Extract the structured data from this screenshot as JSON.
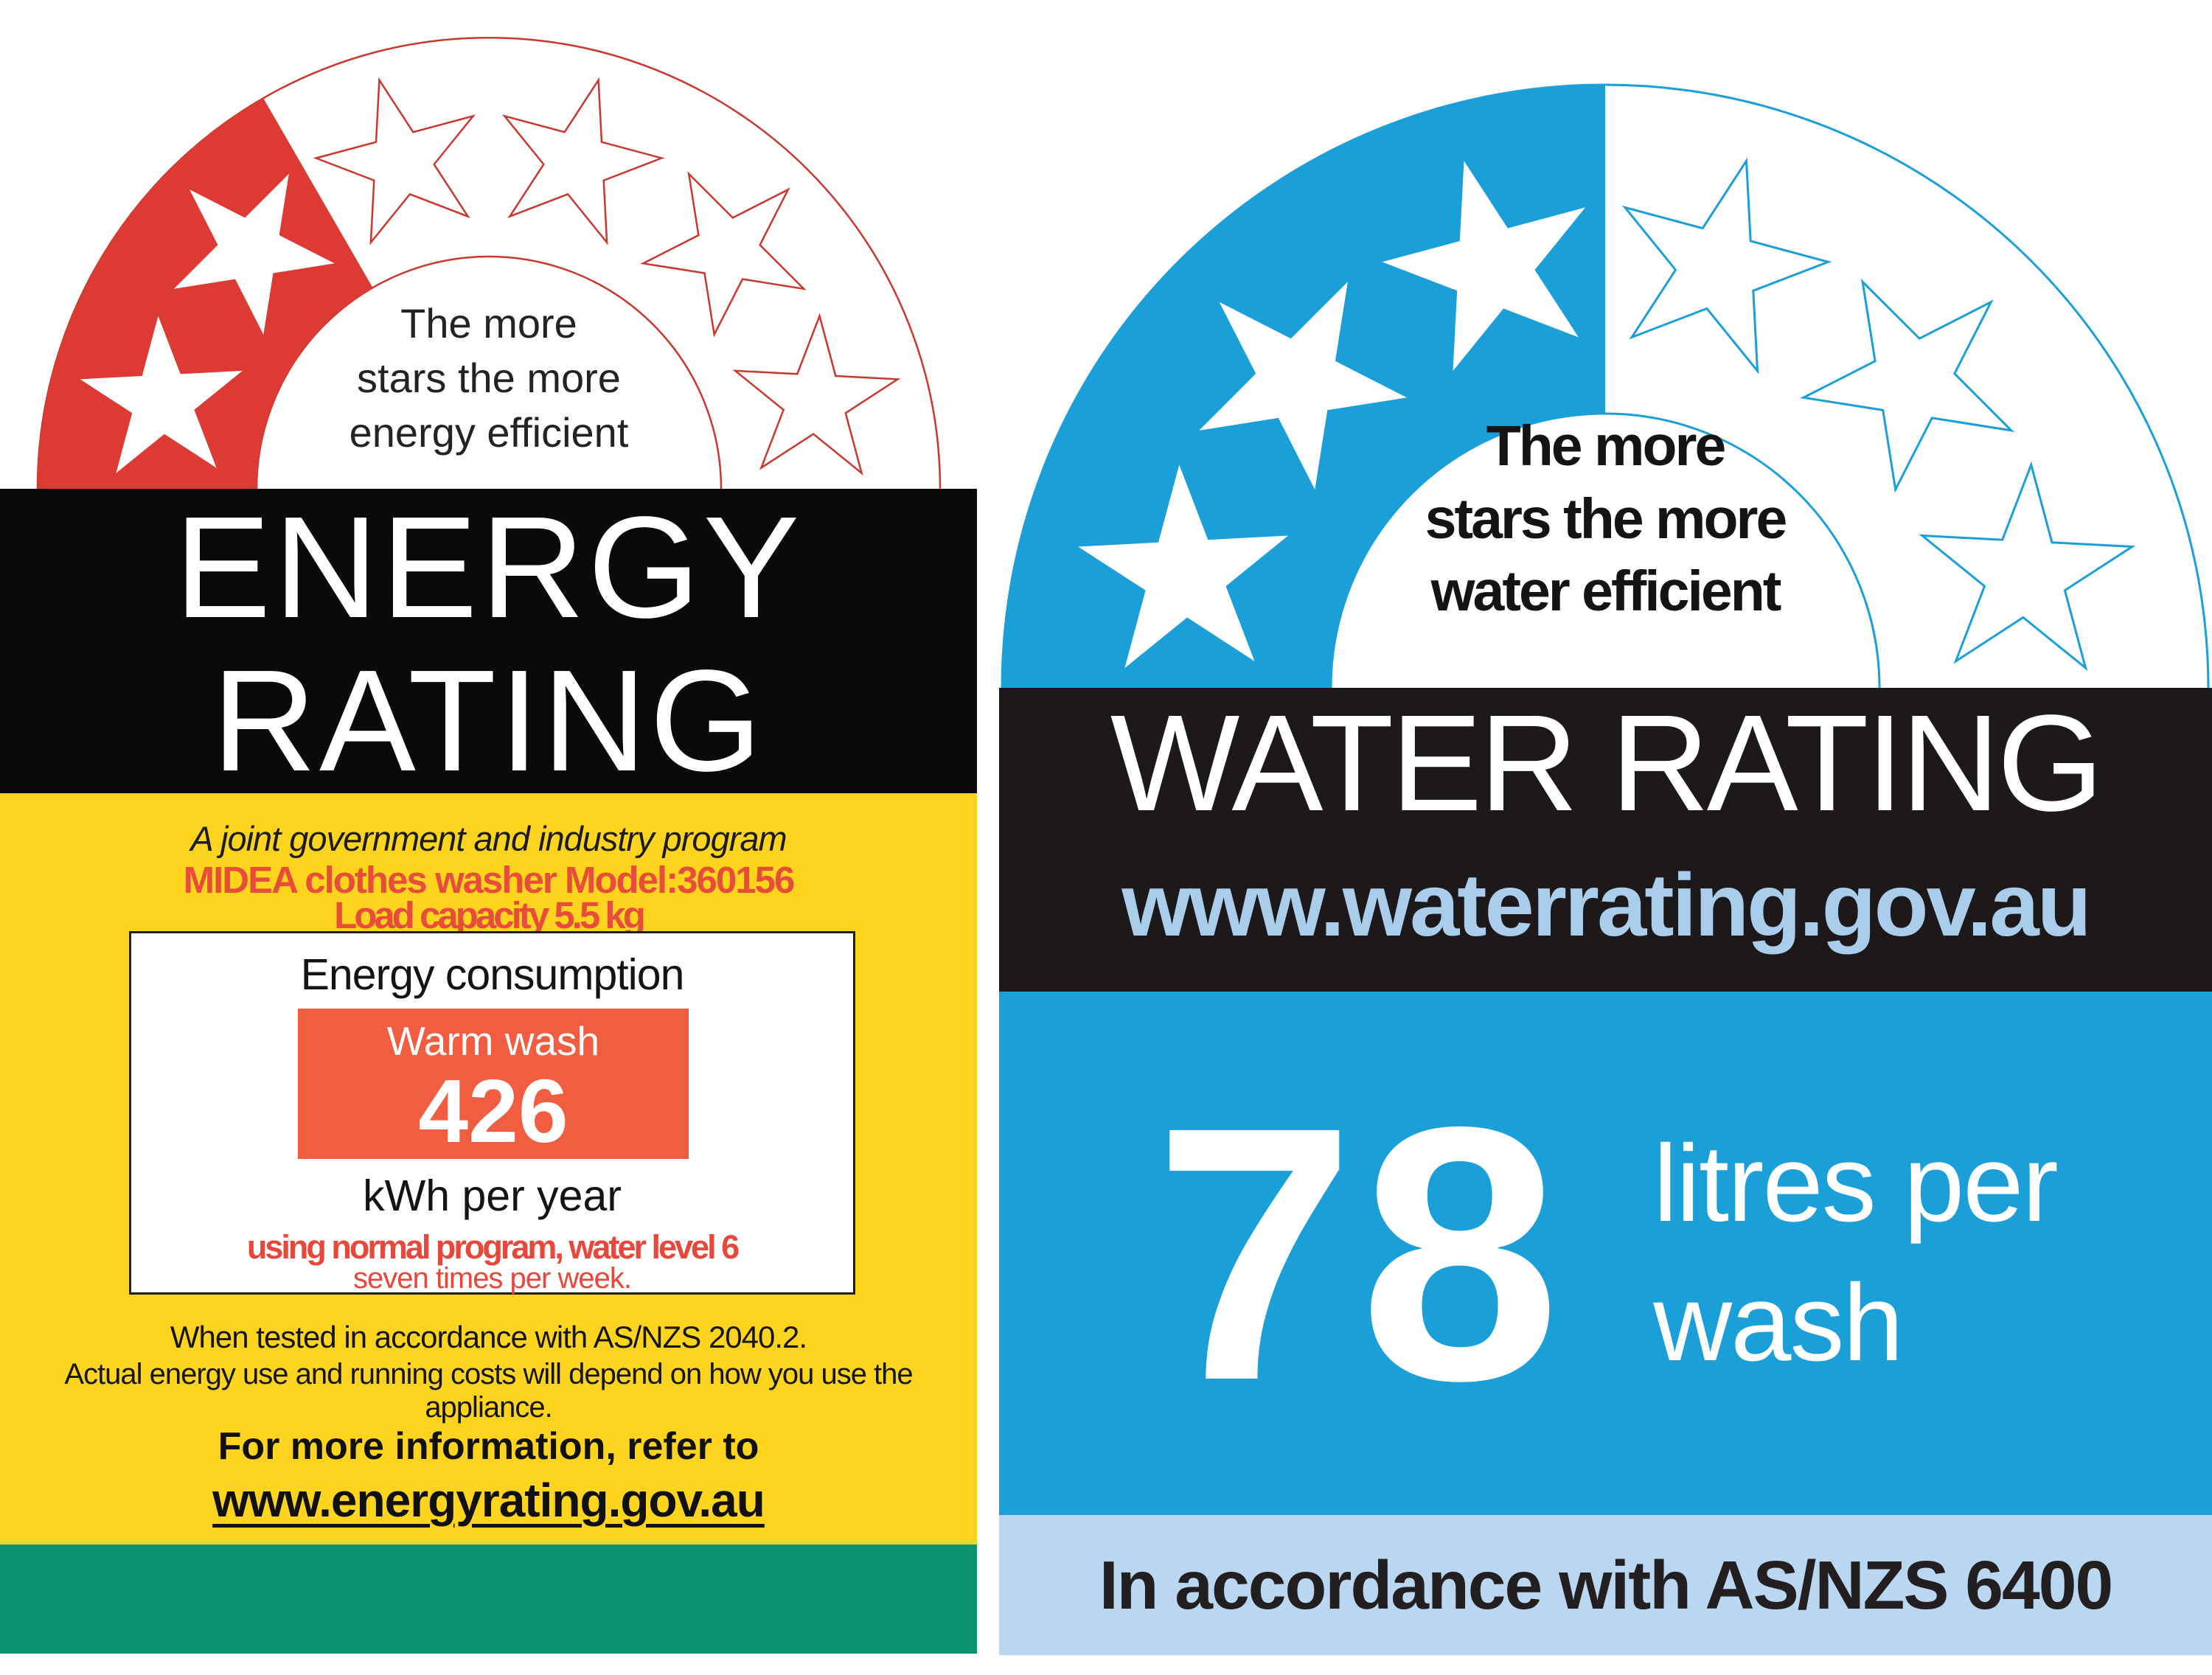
{
  "energy_label": {
    "header": {
      "tagline_lines": [
        "The more",
        "stars the more",
        "energy efficient"
      ],
      "stars_total": 6,
      "stars_filled": 2
    },
    "title_lines": [
      "ENERGY",
      "RATING"
    ],
    "program_note": "A joint government and industry program",
    "model_line": "MIDEA clothes washer Model:360156",
    "capacity_line": "Load capacity 5.5 kg",
    "consumption_box": {
      "heading": "Energy consumption",
      "mode": "Warm wash",
      "value": "426",
      "unit": "kWh per year",
      "condition_line1": "using normal program, water level 6",
      "condition_line2": "seven times per week."
    },
    "disclaimer_lines": [
      "When tested in accordance with AS/NZS 2040.2.",
      "Actual energy use and running costs will depend on how you use the appliance."
    ],
    "more_info": "For more information, refer to",
    "url": "www.energyrating.gov.au",
    "colors": {
      "star_red": "#dd3a33",
      "outline_red": "#c9382f",
      "band_black": "#0a0a0a",
      "body_yellow": "#ffd41f",
      "footer_green": "#0a9271",
      "value_orange": "#f15d40",
      "text_red": "#e84d3c"
    }
  },
  "water_label": {
    "header": {
      "tagline_lines": [
        "The more",
        "stars the more",
        "water efficient"
      ],
      "stars_total": 6,
      "stars_filled": 3
    },
    "title": "WATER RATING",
    "url": "www.waterrating.gov.au",
    "value": "78",
    "unit_lines": [
      "litres per",
      "wash"
    ],
    "footer": "In accordance with AS/NZS 6400",
    "colors": {
      "star_blue": "#1b9fd9",
      "band_black": "#1d191a",
      "url_blue": "#a9cdeb",
      "footer_blue": "#b9d7f1",
      "text_dark": "#231f20"
    }
  }
}
